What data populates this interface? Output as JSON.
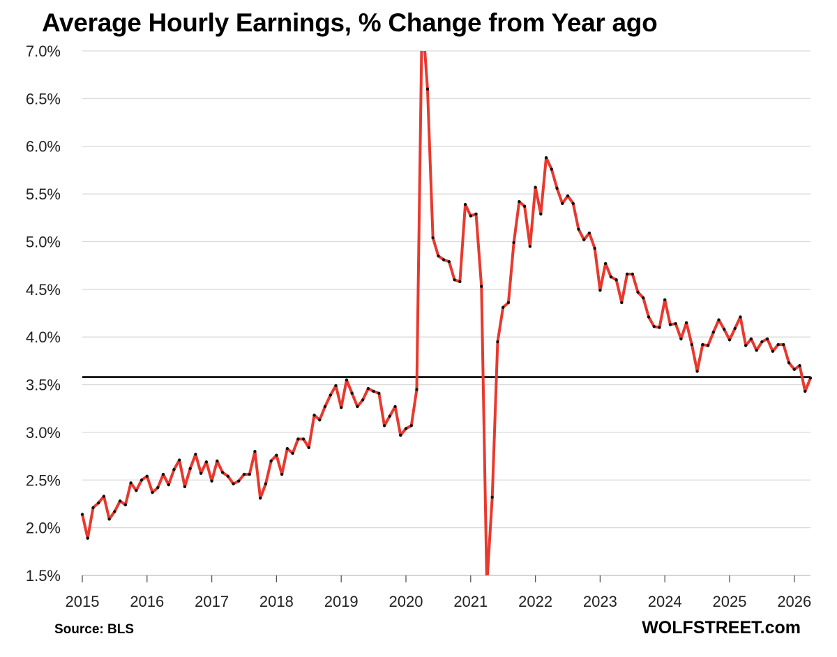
{
  "chart_data": {
    "type": "line",
    "title": "Average Hourly Earnings, % Change from Year ago",
    "xlabel": "",
    "ylabel": "",
    "y_ticks": [
      "1.5%",
      "2.0%",
      "2.5%",
      "3.0%",
      "3.5%",
      "4.0%",
      "4.5%",
      "5.0%",
      "5.5%",
      "6.0%",
      "6.5%",
      "7.0%"
    ],
    "x_ticks": [
      "2015",
      "2016",
      "2017",
      "2018",
      "2019",
      "2020",
      "2021",
      "2022",
      "2023",
      "2024",
      "2025",
      "2026"
    ],
    "ylim": [
      1.5,
      7.0
    ],
    "xlim": [
      "2015-01",
      "2026-04"
    ],
    "grid": true,
    "reference_line": 3.58,
    "colors": {
      "line": "#e8392e",
      "markers": "#111111",
      "reference": "#000000",
      "grid": "#d9d9d9"
    },
    "series": [
      {
        "x": [
          "2015-01",
          "2015-02",
          "2015-03",
          "2015-04",
          "2015-05",
          "2015-06",
          "2015-07",
          "2015-08",
          "2015-09",
          "2015-10",
          "2015-11",
          "2015-12",
          "2016-01",
          "2016-02",
          "2016-03",
          "2016-04",
          "2016-05",
          "2016-06",
          "2016-07",
          "2016-08",
          "2016-09",
          "2016-10",
          "2016-11",
          "2016-12",
          "2017-01",
          "2017-02",
          "2017-03",
          "2017-04",
          "2017-05",
          "2017-06",
          "2017-07",
          "2017-08",
          "2017-09",
          "2017-10",
          "2017-11",
          "2017-12",
          "2018-01",
          "2018-02",
          "2018-03",
          "2018-04",
          "2018-05",
          "2018-06",
          "2018-07",
          "2018-08",
          "2018-09",
          "2018-10",
          "2018-11",
          "2018-12",
          "2019-01",
          "2019-02",
          "2019-03",
          "2019-04",
          "2019-05",
          "2019-06",
          "2019-07",
          "2019-08",
          "2019-09",
          "2019-10",
          "2019-11",
          "2019-12",
          "2020-01",
          "2020-02",
          "2020-03",
          "2020-04",
          "2020-05",
          "2020-06",
          "2020-07",
          "2020-08",
          "2020-09",
          "2020-10",
          "2020-11",
          "2020-12",
          "2021-01",
          "2021-02",
          "2021-03",
          "2021-04",
          "2021-05",
          "2021-06",
          "2021-07",
          "2021-08",
          "2021-09",
          "2021-10",
          "2021-11",
          "2021-12",
          "2022-01",
          "2022-02",
          "2022-03",
          "2022-04",
          "2022-05",
          "2022-06",
          "2022-07",
          "2022-08",
          "2022-09",
          "2022-10",
          "2022-11",
          "2022-12",
          "2023-01",
          "2023-02",
          "2023-03",
          "2023-04",
          "2023-05",
          "2023-06",
          "2023-07",
          "2023-08",
          "2023-09",
          "2023-10",
          "2023-11",
          "2023-12",
          "2024-01",
          "2024-02",
          "2024-03",
          "2024-04",
          "2024-05",
          "2024-06",
          "2024-07",
          "2024-08",
          "2024-09",
          "2024-10",
          "2024-11",
          "2024-12",
          "2025-01",
          "2025-02",
          "2025-03",
          "2025-04",
          "2025-05",
          "2025-06",
          "2025-07",
          "2025-08",
          "2025-09",
          "2025-10",
          "2025-11",
          "2025-12",
          "2026-01",
          "2026-02",
          "2026-03",
          "2026-04"
        ],
        "values": [
          2.14,
          1.89,
          2.21,
          2.26,
          2.33,
          2.09,
          2.17,
          2.28,
          2.24,
          2.47,
          2.39,
          2.5,
          2.54,
          2.37,
          2.42,
          2.56,
          2.45,
          2.61,
          2.71,
          2.43,
          2.62,
          2.77,
          2.57,
          2.69,
          2.49,
          2.7,
          2.58,
          2.54,
          2.46,
          2.49,
          2.56,
          2.56,
          2.8,
          2.31,
          2.46,
          2.7,
          2.76,
          2.56,
          2.83,
          2.78,
          2.93,
          2.93,
          2.84,
          3.18,
          3.13,
          3.27,
          3.39,
          3.49,
          3.26,
          3.55,
          3.41,
          3.27,
          3.34,
          3.46,
          3.43,
          3.41,
          3.07,
          3.17,
          3.27,
          2.97,
          3.04,
          3.07,
          3.45,
          7.4,
          6.6,
          5.04,
          4.85,
          4.81,
          4.79,
          4.6,
          4.58,
          5.39,
          5.27,
          5.29,
          4.53,
          1.4,
          2.32,
          3.95,
          4.31,
          4.36,
          4.99,
          5.42,
          5.37,
          4.95,
          5.57,
          5.29,
          5.88,
          5.76,
          5.56,
          5.4,
          5.48,
          5.4,
          5.13,
          5.02,
          5.09,
          4.93,
          4.49,
          4.77,
          4.63,
          4.6,
          4.36,
          4.66,
          4.66,
          4.47,
          4.41,
          4.21,
          4.11,
          4.1,
          4.39,
          4.13,
          4.14,
          3.98,
          4.15,
          3.92,
          3.64,
          3.92,
          3.91,
          4.05,
          4.18,
          4.08,
          3.97,
          4.09,
          4.21,
          3.91,
          3.98,
          3.86,
          3.95,
          3.98,
          3.85,
          3.92,
          3.92,
          3.73,
          3.66,
          3.7,
          3.43,
          3.57
        ]
      }
    ]
  },
  "footer": {
    "source": "Source: BLS",
    "brand": "WOLFSTREET.com"
  }
}
